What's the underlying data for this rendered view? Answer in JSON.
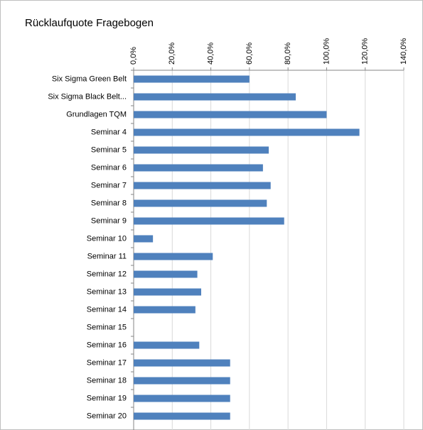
{
  "chart_data": {
    "type": "bar",
    "orientation": "horizontal",
    "title": "Rücklaufquote Fragebogen",
    "categories": [
      "Six Sigma Green Belt",
      "Six Sigma Black Belt...",
      "Grundlagen TQM",
      "Seminar 4",
      "Seminar 5",
      "Seminar 6",
      "Seminar 7",
      "Seminar 8",
      "Seminar 9",
      "Seminar 10",
      "Seminar 11",
      "Seminar 12",
      "Seminar 13",
      "Seminar 14",
      "Seminar 15",
      "Seminar 16",
      "Seminar 17",
      "Seminar 18",
      "Seminar 19",
      "Seminar 20"
    ],
    "values": [
      60,
      84,
      100,
      117,
      70,
      67,
      71,
      69,
      78,
      10,
      41,
      33,
      35,
      32,
      0,
      34,
      50,
      50,
      50,
      50
    ],
    "color": "#4f81bd",
    "xlim": [
      0,
      140
    ],
    "xticks": [
      {
        "value": 0,
        "label": "0,0%"
      },
      {
        "value": 20,
        "label": "20,0%"
      },
      {
        "value": 40,
        "label": "40,0%"
      },
      {
        "value": 60,
        "label": "60,0%"
      },
      {
        "value": 80,
        "label": "80,0%"
      },
      {
        "value": 100,
        "label": "100,0%"
      },
      {
        "value": 120,
        "label": "120,0%"
      },
      {
        "value": 140,
        "label": "140,0%"
      }
    ],
    "grid": true
  }
}
